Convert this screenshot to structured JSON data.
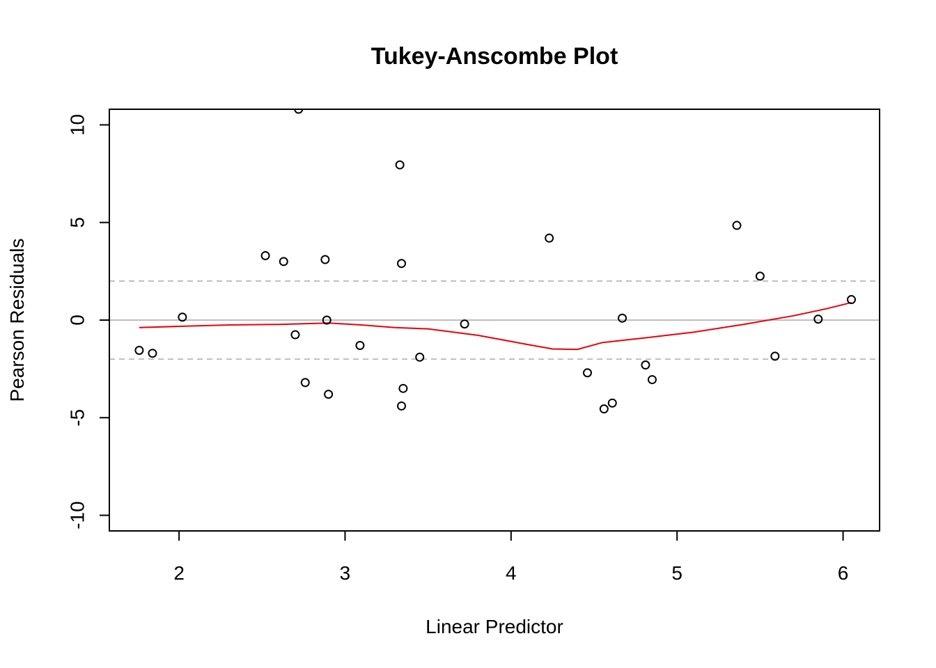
{
  "chart_data": {
    "type": "scatter",
    "title": "Tukey-Anscombe Plot",
    "xlabel": "Linear Predictor",
    "ylabel": "Pearson Residuals",
    "xlim": [
      1.58,
      6.22
    ],
    "ylim": [
      -10.8,
      10.8
    ],
    "x_ticks": [
      2,
      3,
      4,
      5,
      6
    ],
    "y_ticks": [
      -10,
      -5,
      0,
      5,
      10
    ],
    "grid": false,
    "points": [
      {
        "x": 1.76,
        "y": -1.55
      },
      {
        "x": 1.84,
        "y": -1.7
      },
      {
        "x": 2.02,
        "y": 0.15
      },
      {
        "x": 2.52,
        "y": 3.3
      },
      {
        "x": 2.63,
        "y": 3.0
      },
      {
        "x": 2.7,
        "y": -0.75
      },
      {
        "x": 2.72,
        "y": 10.8
      },
      {
        "x": 2.76,
        "y": -3.2
      },
      {
        "x": 2.88,
        "y": 3.1
      },
      {
        "x": 2.89,
        "y": 0.0
      },
      {
        "x": 2.9,
        "y": -3.8
      },
      {
        "x": 3.09,
        "y": -1.3
      },
      {
        "x": 3.33,
        "y": 7.95
      },
      {
        "x": 3.34,
        "y": 2.9
      },
      {
        "x": 3.34,
        "y": -4.4
      },
      {
        "x": 3.35,
        "y": -3.5
      },
      {
        "x": 3.45,
        "y": -1.9
      },
      {
        "x": 3.72,
        "y": -0.2
      },
      {
        "x": 4.23,
        "y": 4.2
      },
      {
        "x": 4.46,
        "y": -2.7
      },
      {
        "x": 4.56,
        "y": -4.55
      },
      {
        "x": 4.61,
        "y": -4.25
      },
      {
        "x": 4.67,
        "y": 0.1
      },
      {
        "x": 4.81,
        "y": -2.3
      },
      {
        "x": 4.85,
        "y": -3.05
      },
      {
        "x": 5.36,
        "y": 4.85
      },
      {
        "x": 5.5,
        "y": 2.25
      },
      {
        "x": 5.59,
        "y": -1.85
      },
      {
        "x": 5.85,
        "y": 0.05
      },
      {
        "x": 6.05,
        "y": 1.05
      }
    ],
    "reference_lines": [
      {
        "y": 0,
        "style": "solid",
        "color": "#bebebe"
      },
      {
        "y": 2,
        "style": "dashed",
        "color": "#bebebe"
      },
      {
        "y": -2,
        "style": "dashed",
        "color": "#bebebe"
      }
    ],
    "smooth_line": {
      "color": "#e8000b",
      "x": [
        1.76,
        2.0,
        2.3,
        2.6,
        2.9,
        3.1,
        3.3,
        3.5,
        3.8,
        4.1,
        4.25,
        4.4,
        4.55,
        4.8,
        5.1,
        5.4,
        5.7,
        5.9,
        6.05
      ],
      "y": [
        -0.38,
        -0.32,
        -0.25,
        -0.22,
        -0.15,
        -0.25,
        -0.38,
        -0.45,
        -0.78,
        -1.25,
        -1.48,
        -1.5,
        -1.15,
        -0.92,
        -0.62,
        -0.22,
        0.22,
        0.58,
        0.9
      ]
    }
  }
}
